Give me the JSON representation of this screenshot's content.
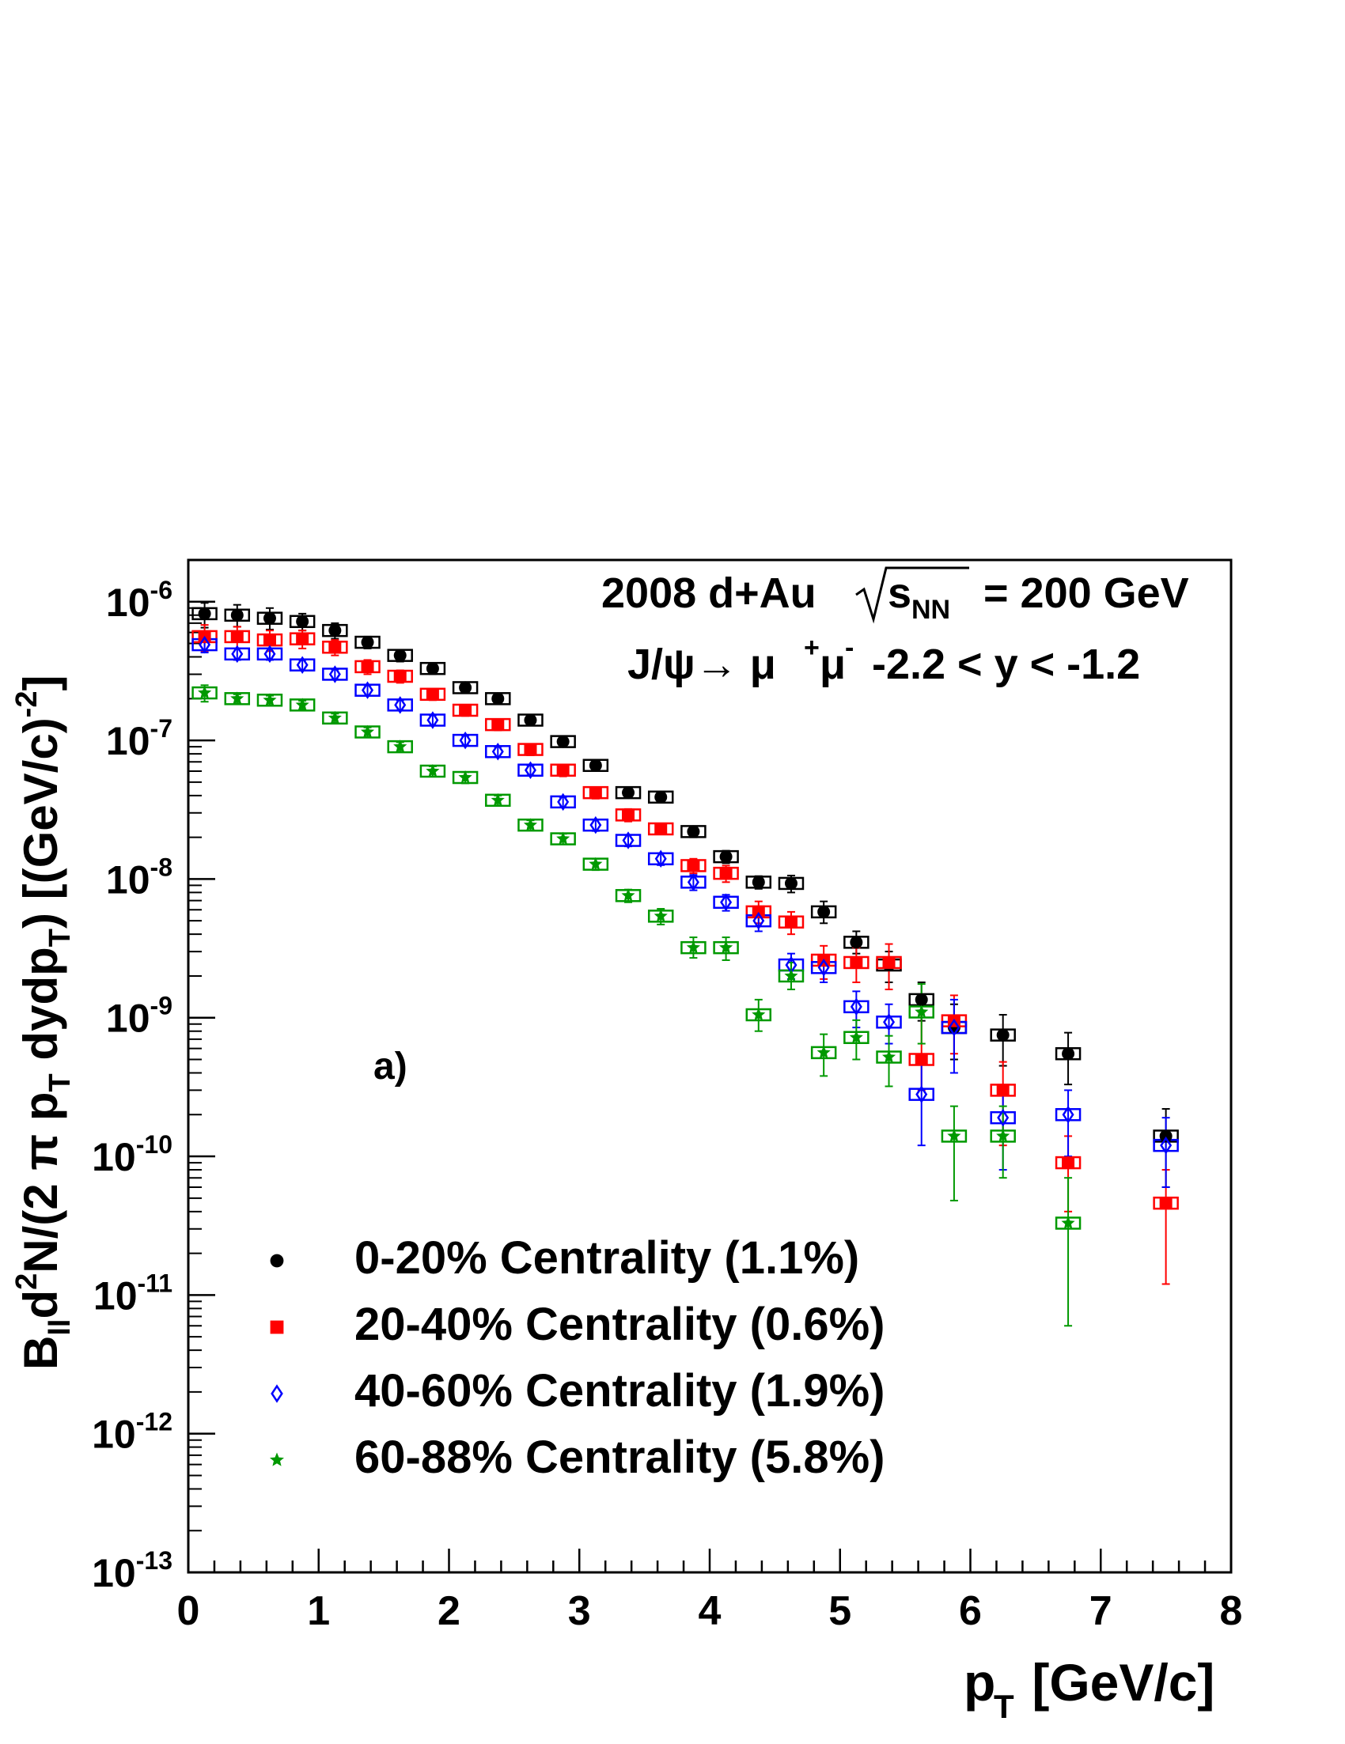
{
  "chart_data": {
    "type": "scatter",
    "title": "",
    "annotation": {
      "line1_prefix": "2008 d+Au",
      "line1_sqrt_s": "s",
      "line1_sqrt_sub": "NN",
      "line1_suffix": "= 200 GeV",
      "line2_prefix": "J/ψ→ μ",
      "line2_sup1": "+",
      "line2_mu2": "μ",
      "line2_sup2": "-",
      "line2_suffix": "-2.2 < y < -1.2"
    },
    "panel_label": "a)",
    "xlabel": {
      "main": "p",
      "sub": "T",
      "rest": " [GeV/c]"
    },
    "ylabel": {
      "p1": "B",
      "s1": "ll",
      "p2": "d",
      "sup2": "2",
      "p3": "N/(2 π p",
      "s3": "T",
      "p4": " dydp",
      "s4": "T",
      "p5": ") [(GeV/c)",
      "sup5": "-2",
      "p6": "]"
    },
    "xlim": [
      0,
      8
    ],
    "ylim": [
      1e-13,
      2e-06
    ],
    "y_scale": "log",
    "x_ticks": [
      0,
      1,
      2,
      3,
      4,
      5,
      6,
      7,
      8
    ],
    "x_tick_labels": [
      "0",
      "1",
      "2",
      "3",
      "4",
      "5",
      "6",
      "7",
      "8"
    ],
    "y_tick_labels": [
      {
        "base": "10",
        "exp": "-13"
      },
      {
        "base": "10",
        "exp": "-12"
      },
      {
        "base": "10",
        "exp": "-11"
      },
      {
        "base": "10",
        "exp": "-10"
      },
      {
        "base": "10",
        "exp": "-9"
      },
      {
        "base": "10",
        "exp": "-8"
      },
      {
        "base": "10",
        "exp": "-7"
      },
      {
        "base": "10",
        "exp": "-6"
      }
    ],
    "grid": false,
    "legend_position": "bottom-left",
    "series": [
      {
        "name": "0-20% Centrality (1.1%)",
        "color": "#000000",
        "marker": "circle",
        "x": [
          0.125,
          0.375,
          0.625,
          0.875,
          1.125,
          1.375,
          1.625,
          1.875,
          2.125,
          2.375,
          2.625,
          2.875,
          3.125,
          3.375,
          3.625,
          3.875,
          4.125,
          4.375,
          4.625,
          4.875,
          5.125,
          5.375,
          5.625,
          5.875,
          6.25,
          6.75,
          7.5
        ],
        "y": [
          8.2e-07,
          8e-07,
          7.6e-07,
          7.2e-07,
          6.2e-07,
          5.1e-07,
          4.1e-07,
          3.3e-07,
          2.4e-07,
          2e-07,
          1.4e-07,
          9.8e-08,
          6.6e-08,
          4.2e-08,
          3.9e-08,
          2.2e-08,
          1.45e-08,
          9.5e-09,
          9.3e-09,
          5.8e-09,
          3.5e-09,
          2.4e-09,
          1.35e-09,
          8.5e-10,
          7.5e-10,
          5.5e-10,
          1.4e-10
        ],
        "err_lo": [
          6.5e-07,
          6.6e-07,
          6.3e-07,
          6.2e-07,
          5.4e-07,
          4.6e-07,
          3.7e-07,
          3e-07,
          2.2e-07,
          1.85e-07,
          1.3e-07,
          9e-08,
          6.1e-08,
          3.9e-08,
          3.6e-08,
          2e-08,
          1.3e-08,
          8.5e-09,
          8e-09,
          4.8e-09,
          2.9e-09,
          1.8e-09,
          9.5e-10,
          5e-10,
          4.5e-10,
          3.3e-10,
          6e-11
        ],
        "err_hi": [
          9.8e-07,
          9.5e-07,
          9e-07,
          8.2e-07,
          7e-07,
          5.6e-07,
          4.5e-07,
          3.6e-07,
          2.6e-07,
          2.15e-07,
          1.5e-07,
          1.06e-07,
          7.1e-08,
          4.5e-08,
          4.2e-08,
          2.4e-08,
          1.6e-08,
          1.05e-08,
          1.06e-08,
          6.9e-09,
          4.2e-09,
          3e-09,
          1.8e-09,
          1.25e-09,
          1.05e-09,
          7.8e-10,
          2.2e-10
        ]
      },
      {
        "name": "20-40% Centrality (0.6%)",
        "color": "#ff0000",
        "marker": "square",
        "x": [
          0.125,
          0.375,
          0.625,
          0.875,
          1.125,
          1.375,
          1.625,
          1.875,
          2.125,
          2.375,
          2.625,
          2.875,
          3.125,
          3.375,
          3.625,
          3.875,
          4.125,
          4.375,
          4.625,
          4.875,
          5.125,
          5.375,
          5.625,
          5.875,
          6.25,
          6.75,
          7.5
        ],
        "y": [
          5.6e-07,
          5.6e-07,
          5.3e-07,
          5.4e-07,
          4.7e-07,
          3.4e-07,
          2.9e-07,
          2.15e-07,
          1.65e-07,
          1.3e-07,
          8.6e-08,
          6.1e-08,
          4.2e-08,
          2.9e-08,
          2.3e-08,
          1.25e-08,
          1.1e-08,
          5.8e-09,
          4.9e-09,
          2.6e-09,
          2.5e-09,
          2.5e-09,
          5e-10,
          9.5e-10,
          3e-10,
          9e-11,
          4.6e-11
        ],
        "err_lo": [
          4.4e-07,
          4.6e-07,
          4.4e-07,
          4.6e-07,
          4.1e-07,
          3e-07,
          2.6e-07,
          1.95e-07,
          1.5e-07,
          1.18e-07,
          7.8e-08,
          5.5e-08,
          3.8e-08,
          2.6e-08,
          2.1e-08,
          1.1e-08,
          9.5e-09,
          4.8e-09,
          4e-09,
          1.9e-09,
          1.8e-09,
          1.6e-09,
          3e-10,
          5.5e-10,
          1.2e-10,
          4e-11,
          1.2e-11
        ],
        "err_hi": [
          6.8e-07,
          6.6e-07,
          6.2e-07,
          6.2e-07,
          5.3e-07,
          3.8e-07,
          3.2e-07,
          2.35e-07,
          1.8e-07,
          1.42e-07,
          9.4e-08,
          6.7e-08,
          4.6e-08,
          3.2e-08,
          2.5e-08,
          1.4e-08,
          1.25e-08,
          6.9e-09,
          5.8e-09,
          3.3e-09,
          3.2e-09,
          3.4e-09,
          1.1e-09,
          1.45e-09,
          4.8e-10,
          1.4e-10,
          8e-11
        ]
      },
      {
        "name": "40-60% Centrality (1.9%)",
        "color": "#0000ff",
        "marker": "diamond",
        "x": [
          0.125,
          0.375,
          0.625,
          0.875,
          1.125,
          1.375,
          1.625,
          1.875,
          2.125,
          2.375,
          2.625,
          2.875,
          3.125,
          3.375,
          3.625,
          3.875,
          4.125,
          4.375,
          4.625,
          4.875,
          5.125,
          5.375,
          5.625,
          5.875,
          6.25,
          6.75,
          7.5
        ],
        "y": [
          4.9e-07,
          4.2e-07,
          4.2e-07,
          3.5e-07,
          3e-07,
          2.3e-07,
          1.8e-07,
          1.4e-07,
          1e-07,
          8.3e-08,
          6.1e-08,
          3.6e-08,
          2.45e-08,
          1.9e-08,
          1.4e-08,
          9.5e-09,
          6.8e-09,
          5e-09,
          2.4e-09,
          2.3e-09,
          1.2e-09,
          9.3e-10,
          2.8e-10,
          8.5e-10,
          1.9e-10,
          2e-10,
          1.2e-10
        ],
        "err_lo": [
          4.3e-07,
          3.8e-07,
          3.8e-07,
          3.2e-07,
          2.75e-07,
          2.1e-07,
          1.65e-07,
          1.28e-07,
          9.2e-08,
          7.6e-08,
          5.6e-08,
          3.3e-08,
          2.22e-08,
          1.72e-08,
          1.26e-08,
          8.3e-09,
          5.9e-09,
          4.2e-09,
          1.9e-09,
          1.8e-09,
          8.5e-10,
          6.5e-10,
          1.2e-10,
          4e-10,
          8e-11,
          1e-10,
          6e-11
        ],
        "err_hi": [
          5.5e-07,
          4.6e-07,
          4.6e-07,
          3.8e-07,
          3.25e-07,
          2.5e-07,
          1.95e-07,
          1.52e-07,
          1.08e-07,
          9e-08,
          6.6e-08,
          3.9e-08,
          2.68e-08,
          2.08e-08,
          1.54e-08,
          1.07e-08,
          7.7e-09,
          5.8e-09,
          2.9e-09,
          2.8e-09,
          1.55e-09,
          1.25e-09,
          4.8e-10,
          1.35e-09,
          2.9e-10,
          3e-10,
          1.9e-10
        ]
      },
      {
        "name": "60-88% Centrality (5.8%)",
        "color": "#009900",
        "marker": "star",
        "x": [
          0.125,
          0.375,
          0.625,
          0.875,
          1.125,
          1.375,
          1.625,
          1.875,
          2.125,
          2.375,
          2.625,
          2.875,
          3.125,
          3.375,
          3.625,
          3.875,
          4.125,
          4.375,
          4.625,
          4.875,
          5.125,
          5.375,
          5.625,
          5.875,
          6.25,
          6.75
        ],
        "y": [
          2.2e-07,
          2e-07,
          1.95e-07,
          1.8e-07,
          1.45e-07,
          1.15e-07,
          9e-08,
          6e-08,
          5.4e-08,
          3.7e-08,
          2.45e-08,
          1.95e-08,
          1.28e-08,
          7.6e-09,
          5.4e-09,
          3.2e-09,
          3.2e-09,
          1.05e-09,
          2e-09,
          5.6e-10,
          7.2e-10,
          5.2e-10,
          1.1e-09,
          1.4e-10,
          1.4e-10,
          3.3e-11
        ],
        "err_lo": [
          1.9e-07,
          1.85e-07,
          1.8e-07,
          1.67e-07,
          1.34e-07,
          1.06e-07,
          8.3e-08,
          5.5e-08,
          4.9e-08,
          3.4e-08,
          2.25e-08,
          1.78e-08,
          1.16e-08,
          6.8e-09,
          4.7e-09,
          2.7e-09,
          2.6e-09,
          8e-10,
          1.6e-09,
          3.8e-10,
          5e-10,
          3.2e-10,
          6.5e-10,
          4.8e-11,
          7e-11,
          6e-12
        ],
        "err_hi": [
          2.5e-07,
          2.15e-07,
          2.1e-07,
          1.93e-07,
          1.56e-07,
          1.24e-07,
          9.7e-08,
          6.5e-08,
          5.9e-08,
          4e-08,
          2.65e-08,
          2.12e-08,
          1.4e-08,
          8.4e-09,
          6.1e-09,
          3.8e-09,
          3.8e-09,
          1.35e-09,
          2.5e-09,
          7.6e-10,
          9.6e-10,
          7.4e-10,
          1.75e-09,
          2.3e-10,
          2.3e-10,
          7e-11
        ]
      }
    ]
  }
}
